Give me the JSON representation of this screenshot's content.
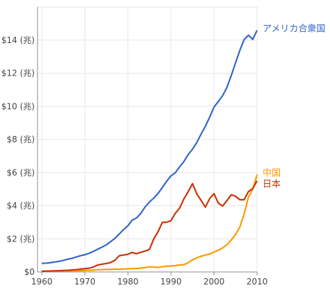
{
  "chart_data": {
    "type": "line",
    "title": "",
    "xlabel": "",
    "ylabel": "",
    "xlim": [
      1959,
      2010
    ],
    "ylim": [
      0,
      16
    ],
    "grid": true,
    "legend": "inline-right",
    "x_ticks": [
      1960,
      1970,
      1980,
      1990,
      2000,
      2010
    ],
    "y_ticks": [
      {
        "value": 0,
        "label": "$0"
      },
      {
        "value": 2,
        "label": "$2 (兆)"
      },
      {
        "value": 4,
        "label": "$4 (兆)"
      },
      {
        "value": 6,
        "label": "$6 (兆)"
      },
      {
        "value": 8,
        "label": "$8 (兆)"
      },
      {
        "value": 10,
        "label": "$10 (兆)"
      },
      {
        "value": 12,
        "label": "$12 (兆)"
      },
      {
        "value": 14,
        "label": "$14 (兆)"
      },
      {
        "value": 16,
        "label": ""
      }
    ],
    "x": [
      1960,
      1961,
      1962,
      1963,
      1964,
      1965,
      1966,
      1967,
      1968,
      1969,
      1970,
      1971,
      1972,
      1973,
      1974,
      1975,
      1976,
      1977,
      1978,
      1979,
      1980,
      1981,
      1982,
      1983,
      1984,
      1985,
      1986,
      1987,
      1988,
      1989,
      1990,
      1991,
      1992,
      1993,
      1994,
      1995,
      1996,
      1997,
      1998,
      1999,
      2000,
      2001,
      2002,
      2003,
      2004,
      2005,
      2006,
      2007,
      2008,
      2009,
      2010
    ],
    "series": [
      {
        "name": "アメリカ合衆国",
        "color": "#3366cc",
        "values": [
          0.52,
          0.53,
          0.56,
          0.6,
          0.64,
          0.7,
          0.77,
          0.82,
          0.91,
          0.98,
          1.04,
          1.13,
          1.24,
          1.38,
          1.5,
          1.64,
          1.83,
          2.03,
          2.29,
          2.56,
          2.79,
          3.13,
          3.26,
          3.54,
          3.93,
          4.22,
          4.46,
          4.74,
          5.1,
          5.48,
          5.8,
          5.99,
          6.34,
          6.67,
          7.09,
          7.41,
          7.82,
          8.33,
          8.79,
          9.35,
          9.95,
          10.29,
          10.64,
          11.14,
          11.85,
          12.62,
          13.38,
          14.03,
          14.29,
          14.04,
          14.59
        ]
      },
      {
        "name": "中国",
        "color": "#ff9900",
        "values": [
          0.06,
          0.05,
          0.05,
          0.05,
          0.06,
          0.07,
          0.08,
          0.07,
          0.07,
          0.08,
          0.09,
          0.1,
          0.11,
          0.14,
          0.14,
          0.16,
          0.15,
          0.17,
          0.15,
          0.18,
          0.19,
          0.2,
          0.21,
          0.23,
          0.26,
          0.31,
          0.3,
          0.27,
          0.31,
          0.35,
          0.36,
          0.38,
          0.42,
          0.44,
          0.56,
          0.73,
          0.86,
          0.95,
          1.02,
          1.08,
          1.2,
          1.32,
          1.45,
          1.64,
          1.93,
          2.26,
          2.71,
          3.49,
          4.52,
          4.99,
          5.88
        ]
      },
      {
        "name": "日本",
        "color": "#cc3300",
        "values": [
          0.04,
          0.05,
          0.06,
          0.07,
          0.08,
          0.09,
          0.1,
          0.12,
          0.14,
          0.17,
          0.2,
          0.23,
          0.3,
          0.42,
          0.47,
          0.51,
          0.57,
          0.71,
          0.98,
          1.02,
          1.07,
          1.18,
          1.1,
          1.19,
          1.26,
          1.36,
          2.0,
          2.43,
          3.0,
          3.0,
          3.1,
          3.54,
          3.85,
          4.41,
          4.85,
          5.33,
          4.71,
          4.32,
          3.91,
          4.43,
          4.73,
          4.16,
          3.98,
          4.3,
          4.66,
          4.57,
          4.36,
          4.36,
          4.85,
          5.04,
          5.5
        ]
      }
    ]
  }
}
